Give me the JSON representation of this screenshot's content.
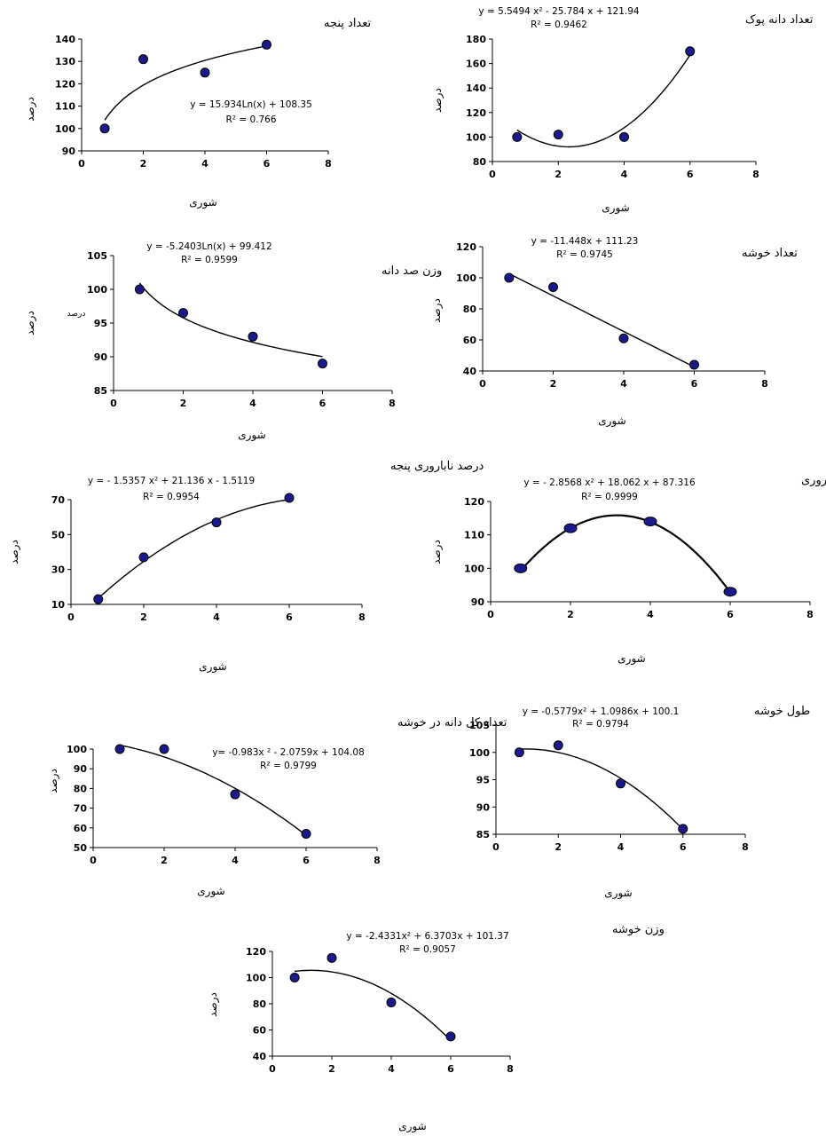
{
  "chart_data": [
    {
      "type": "scatter",
      "title": "تعداد پنجه",
      "xlabel": "شوری",
      "ylabel": "درصد",
      "xlim": [
        0,
        8
      ],
      "ylim": [
        90,
        140
      ],
      "xticks": [
        0,
        2,
        4,
        6,
        8
      ],
      "yticks": [
        90,
        100,
        110,
        120,
        130,
        140
      ],
      "x": [
        0.75,
        2,
        4,
        6
      ],
      "y": [
        100,
        131,
        125,
        137.5
      ],
      "trendline": {
        "kind": "log",
        "a": 15.934,
        "b": 108.35
      },
      "equation": "y = 15.934Ln(x) + 108.35",
      "r2": "R² = 0.766"
    },
    {
      "type": "scatter",
      "title": "تعداد دانه پوک",
      "xlabel": "شوری",
      "ylabel": "درصد",
      "xlim": [
        0,
        8
      ],
      "ylim": [
        80,
        180
      ],
      "xticks": [
        0,
        2,
        4,
        6,
        8
      ],
      "yticks": [
        80,
        100,
        120,
        140,
        160,
        180
      ],
      "x": [
        0.75,
        2,
        4,
        6
      ],
      "y": [
        100,
        102,
        100,
        170
      ],
      "trendline": {
        "kind": "poly2",
        "a": 5.5494,
        "b": -25.784,
        "c": 121.94
      },
      "equation": "y = 5.5494 x² - 25.784 x + 121.94",
      "r2": "R² = 0.9462"
    },
    {
      "type": "scatter",
      "title": "وزن صد دانه",
      "xlabel": "شوری",
      "ylabel": "درصد",
      "ylabel2": "درصد",
      "xlim": [
        0,
        8
      ],
      "ylim": [
        85,
        105
      ],
      "xticks": [
        0,
        2,
        4,
        6,
        8
      ],
      "yticks": [
        85,
        90,
        95,
        100,
        105
      ],
      "x": [
        0.75,
        2,
        4,
        6
      ],
      "y": [
        100,
        96.5,
        93,
        89
      ],
      "trendline": {
        "kind": "log",
        "a": -5.2403,
        "b": 99.412
      },
      "equation": "y = -5.2403Ln(x) + 99.412",
      "r2": "R² = 0.9599"
    },
    {
      "type": "scatter",
      "title": "تعداد خوشه",
      "xlabel": "شوری",
      "ylabel": "درصد",
      "xlim": [
        0,
        8
      ],
      "ylim": [
        40,
        120
      ],
      "xticks": [
        0,
        2,
        4,
        6,
        8
      ],
      "yticks": [
        40,
        60,
        80,
        100,
        120
      ],
      "x": [
        0.75,
        2,
        4,
        6
      ],
      "y": [
        100,
        94,
        61,
        44
      ],
      "trendline": {
        "kind": "linear",
        "a": -11.448,
        "b": 111.23
      },
      "equation": "y = -11.448x +   111.23",
      "r2": "R² = 0.9745"
    },
    {
      "type": "scatter",
      "title": "درصد ناباروری پنجه",
      "xlabel": "شوری",
      "ylabel": "درصد",
      "xlim": [
        0,
        8
      ],
      "ylim": [
        10,
        70
      ],
      "xticks": [
        0,
        2,
        4,
        6,
        8
      ],
      "yticks": [
        10,
        30,
        50,
        70
      ],
      "x": [
        0.75,
        2,
        4,
        6
      ],
      "y": [
        13,
        37,
        57,
        71
      ],
      "trendline": {
        "kind": "poly2",
        "a": -1.5357,
        "b": 21.136,
        "c": -1.5119
      },
      "equation": "y = - 1.5357  x² + 21.136  x  - 1.5119",
      "r2": "R² = 0.9954"
    },
    {
      "type": "scatter",
      "title": "باروری",
      "xlabel": "شوری",
      "ylabel": "درصد",
      "xlim": [
        0,
        8
      ],
      "ylim": [
        90,
        120
      ],
      "xticks": [
        0,
        2,
        4,
        6,
        8
      ],
      "yticks": [
        90,
        100,
        110,
        120
      ],
      "x": [
        0.75,
        2,
        4,
        6
      ],
      "y": [
        100,
        112,
        114,
        93
      ],
      "trendline": {
        "kind": "poly2",
        "a": -2.8568,
        "b": 18.062,
        "c": 87.316
      },
      "equation": "y = - 2.8568    x² +  18.062    x   + 87.316",
      "r2": "R² = 0.9999"
    },
    {
      "type": "scatter",
      "title": "تعداد کل دانه در خوشه",
      "xlabel": "شوری",
      "ylabel": "درصد",
      "xlim": [
        0,
        8
      ],
      "ylim": [
        50,
        100
      ],
      "xticks": [
        0,
        2,
        4,
        6,
        8
      ],
      "yticks": [
        50,
        60,
        70,
        80,
        90,
        100
      ],
      "x": [
        0.75,
        2,
        4,
        6
      ],
      "y": [
        100,
        100,
        77,
        57
      ],
      "trendline": {
        "kind": "poly2",
        "a": -0.983,
        "b": -2.0759,
        "c": 104.08
      },
      "equation": "y= -0.983x ² - 2.0759x + 104.08",
      "r2": "R² = 0.9799"
    },
    {
      "type": "scatter",
      "title": "طول خوشه",
      "xlabel": "شوری",
      "ylabel": "",
      "xlim": [
        0,
        8
      ],
      "ylim": [
        85,
        105
      ],
      "xticks": [
        0,
        2,
        4,
        6,
        8
      ],
      "yticks": [
        85,
        90,
        95,
        100,
        105
      ],
      "x": [
        0.75,
        2,
        4,
        6
      ],
      "y": [
        100,
        101.3,
        94.3,
        86
      ],
      "trendline": {
        "kind": "poly2",
        "a": -0.5779,
        "b": 1.0986,
        "c": 100.1
      },
      "equation": "y = -0.5779x² + 1.0986x + 100.1",
      "r2": "R² = 0.9794"
    },
    {
      "type": "scatter",
      "title": "وزن خوشه",
      "xlabel": "شوری",
      "ylabel": "درصد",
      "xlim": [
        0,
        8
      ],
      "ylim": [
        40,
        120
      ],
      "xticks": [
        0,
        2,
        4,
        6,
        8
      ],
      "yticks": [
        40,
        60,
        80,
        100,
        120
      ],
      "x": [
        0.75,
        2,
        4,
        6
      ],
      "y": [
        100,
        115,
        81,
        55
      ],
      "trendline": {
        "kind": "poly2",
        "a": -2.4331,
        "b": 6.3703,
        "c": 101.37
      },
      "equation": "y = -2.4331x² + 6.3703x + 101.37",
      "r2": "R² = 0.9057"
    }
  ],
  "colors": {
    "marker_fill": "#1a1a8c",
    "marker_stroke": "#000000",
    "line": "#000000"
  }
}
